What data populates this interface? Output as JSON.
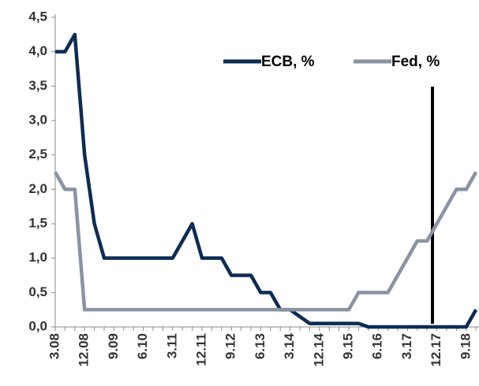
{
  "chart_data": {
    "type": "line",
    "categories": [
      "3.08",
      null,
      null,
      "12.08",
      null,
      null,
      "9.09",
      null,
      null,
      "6.10",
      null,
      null,
      "3.11",
      null,
      null,
      "12.11",
      null,
      null,
      "9.12",
      null,
      null,
      "6.13",
      null,
      null,
      "3.14",
      null,
      null,
      "12.14",
      null,
      null,
      "9.15",
      null,
      null,
      "6.16",
      null,
      null,
      "3.17",
      null,
      null,
      "12.17",
      null,
      null,
      "9.18",
      null
    ],
    "series": [
      {
        "name": "ECB, %",
        "color": "#0d2c54",
        "values": [
          4.0,
          4.0,
          4.25,
          2.5,
          1.5,
          1.0,
          1.0,
          1.0,
          1.0,
          1.0,
          1.0,
          1.0,
          1.0,
          1.25,
          1.5,
          1.0,
          1.0,
          1.0,
          0.75,
          0.75,
          0.75,
          0.5,
          0.5,
          0.25,
          0.25,
          0.15,
          0.05,
          0.05,
          0.05,
          0.05,
          0.05,
          0.05,
          0,
          0,
          0,
          0,
          0,
          0,
          0,
          0,
          0,
          0,
          0,
          0.25
        ]
      },
      {
        "name": "Fed, %",
        "color": "#8a93a3",
        "values": [
          2.25,
          2.0,
          2.0,
          0.25,
          0.25,
          0.25,
          0.25,
          0.25,
          0.25,
          0.25,
          0.25,
          0.25,
          0.25,
          0.25,
          0.25,
          0.25,
          0.25,
          0.25,
          0.25,
          0.25,
          0.25,
          0.25,
          0.25,
          0.25,
          0.25,
          0.25,
          0.25,
          0.25,
          0.25,
          0.25,
          0.25,
          0.5,
          0.5,
          0.5,
          0.5,
          0.75,
          1.0,
          1.25,
          1.25,
          1.5,
          1.75,
          2.0,
          2.0,
          2.25
        ]
      }
    ],
    "ylim": [
      0,
      4.5
    ],
    "yticks": [
      {
        "value": 0,
        "label": "0,0"
      },
      {
        "value": 0.5,
        "label": "0,5"
      },
      {
        "value": 1,
        "label": "1,0"
      },
      {
        "value": 1.5,
        "label": "1,5"
      },
      {
        "value": 2,
        "label": "2,0"
      },
      {
        "value": 2.5,
        "label": "2,5"
      },
      {
        "value": 3,
        "label": "3,0"
      },
      {
        "value": 3.5,
        "label": "3,5"
      },
      {
        "value": 4,
        "label": "4,0"
      },
      {
        "value": 4.5,
        "label": "4,5"
      }
    ],
    "legend": "top-right"
  }
}
